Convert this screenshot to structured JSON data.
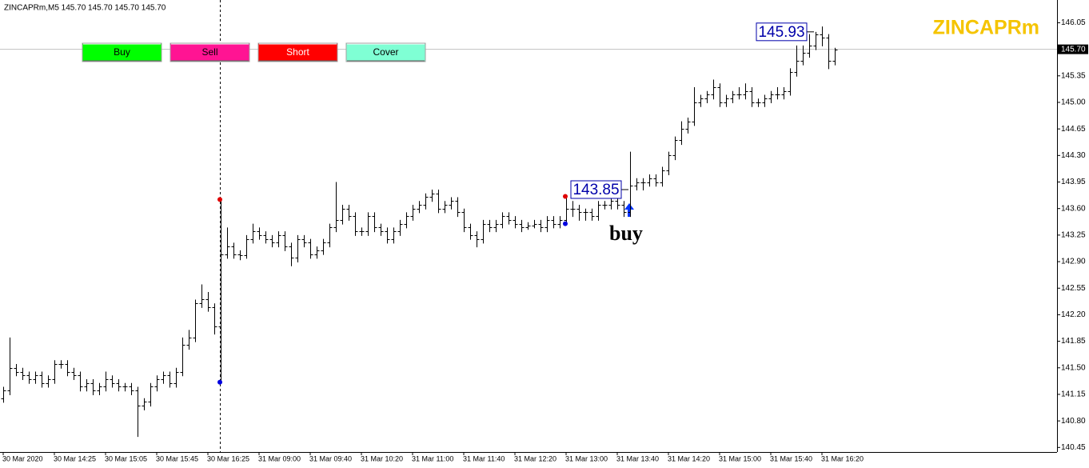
{
  "chart_data": {
    "type": "ohlc",
    "title": "ZINCAPRm,M5  145.70 145.70 145.70 145.70",
    "symbol": "ZINCAPRm",
    "annotation": "buy",
    "color": "#000000",
    "ylim": [
      140.39,
      146.35
    ],
    "yticks": [
      140.45,
      {
        "value": 140.8,
        "label": "140.80"
      },
      141.15,
      {
        "value": 141.5,
        "label": "141.50"
      },
      141.85,
      {
        "value": 142.2,
        "label": "142.20"
      },
      142.55,
      {
        "value": 142.9,
        "label": "142.90"
      },
      143.25,
      {
        "value": 143.6,
        "label": "143.60"
      },
      143.95,
      {
        "value": 144.3,
        "label": "144.30"
      },
      144.65,
      {
        "value": 145,
        "label": "145.00"
      },
      145.35,
      {
        "value": 145.7,
        "label": "145.70"
      },
      146.05
    ],
    "last_price": {
      "value": 145.7,
      "label": "145.70"
    },
    "trade_labels": [
      143.85,
      145.93
    ],
    "signals": [
      {
        "high": 143.72,
        "low": 141.31,
        "high_color": "#e00000",
        "low_color": "#0000e0"
      },
      {
        "high": 143.76,
        "low": 143.4,
        "high_color": "#e00000",
        "low_color": "#0000e0"
      }
    ],
    "categories": [
      "30 Mar 2020",
      null,
      null,
      null,
      null,
      null,
      null,
      null,
      "30 Mar 14:25",
      null,
      null,
      null,
      null,
      null,
      null,
      null,
      "30 Mar 15:05",
      null,
      null,
      null,
      null,
      null,
      null,
      null,
      "30 Mar 15:45",
      null,
      null,
      null,
      null,
      null,
      null,
      null,
      "30 Mar 16:25",
      null,
      null,
      null,
      null,
      null,
      null,
      null,
      "31 Mar 09:00",
      null,
      null,
      null,
      null,
      null,
      null,
      null,
      "31 Mar 09:40",
      null,
      null,
      null,
      null,
      null,
      null,
      null,
      "31 Mar 10:20",
      null,
      null,
      null,
      null,
      null,
      null,
      null,
      "31 Mar 11:00",
      null,
      null,
      null,
      null,
      null,
      null,
      null,
      "31 Mar 11:40",
      null,
      null,
      null,
      null,
      null,
      null,
      null,
      "31 Mar 12:20",
      null,
      null,
      null,
      null,
      null,
      null,
      null,
      "31 Mar 13:00",
      null,
      null,
      null,
      null,
      null,
      null,
      null,
      "31 Mar 13:40",
      null,
      null,
      null,
      null,
      null,
      null,
      null,
      "31 Mar 14:20",
      null,
      null,
      null,
      null,
      null,
      null,
      null,
      "31 Mar 15:00",
      null,
      null,
      null,
      null,
      null,
      null,
      null,
      "31 Mar 15:40",
      null,
      null,
      null,
      null,
      null,
      null,
      null,
      "31 Mar 16:20",
      null,
      null
    ],
    "ohlc": [
      [
        141.1,
        141.25,
        141.05,
        141.2
      ],
      [
        141.2,
        141.9,
        141.15,
        141.5
      ],
      [
        141.5,
        141.55,
        141.4,
        141.45
      ],
      [
        141.45,
        141.5,
        141.35,
        141.4
      ],
      [
        141.4,
        141.45,
        141.3,
        141.35
      ],
      [
        141.35,
        141.45,
        141.3,
        141.4
      ],
      [
        141.4,
        141.45,
        141.25,
        141.3
      ],
      [
        141.3,
        141.4,
        141.25,
        141.35
      ],
      [
        141.35,
        141.6,
        141.3,
        141.55
      ],
      [
        141.55,
        141.6,
        141.5,
        141.55
      ],
      [
        141.55,
        141.6,
        141.4,
        141.45
      ],
      [
        141.45,
        141.5,
        141.35,
        141.4
      ],
      [
        141.4,
        141.45,
        141.2,
        141.25
      ],
      [
        141.25,
        141.35,
        141.2,
        141.3
      ],
      [
        141.3,
        141.35,
        141.15,
        141.2
      ],
      [
        141.2,
        141.3,
        141.15,
        141.25
      ],
      [
        141.25,
        141.45,
        141.2,
        141.35
      ],
      [
        141.35,
        141.4,
        141.25,
        141.3
      ],
      [
        141.3,
        141.35,
        141.2,
        141.25
      ],
      [
        141.25,
        141.3,
        141.2,
        141.25
      ],
      [
        141.25,
        141.3,
        141.15,
        141.2
      ],
      [
        141.2,
        141.25,
        140.6,
        141.0
      ],
      [
        141.0,
        141.1,
        140.95,
        141.05
      ],
      [
        141.05,
        141.3,
        141.0,
        141.25
      ],
      [
        141.25,
        141.4,
        141.2,
        141.35
      ],
      [
        141.35,
        141.45,
        141.3,
        141.4
      ],
      [
        141.4,
        141.45,
        141.25,
        141.3
      ],
      [
        141.3,
        141.5,
        141.25,
        141.45
      ],
      [
        141.45,
        141.9,
        141.4,
        141.8
      ],
      [
        141.8,
        142.0,
        141.75,
        141.9
      ],
      [
        141.9,
        142.4,
        141.85,
        142.35
      ],
      [
        142.35,
        142.6,
        142.3,
        142.4
      ],
      [
        142.4,
        142.5,
        142.25,
        142.3
      ],
      [
        142.3,
        142.35,
        141.95,
        142.05
      ],
      [
        142.05,
        143.72,
        141.31,
        143.0
      ],
      [
        143.0,
        143.35,
        142.95,
        143.1
      ],
      [
        143.1,
        143.15,
        142.95,
        143.0
      ],
      [
        143.0,
        143.05,
        142.93,
        142.98
      ],
      [
        142.98,
        143.25,
        142.95,
        143.2
      ],
      [
        143.2,
        143.4,
        143.15,
        143.3
      ],
      [
        143.3,
        143.35,
        143.2,
        143.25
      ],
      [
        143.25,
        143.3,
        143.15,
        143.2
      ],
      [
        143.2,
        143.25,
        143.1,
        143.15
      ],
      [
        143.15,
        143.3,
        143.1,
        143.25
      ],
      [
        143.25,
        143.3,
        143.05,
        143.1
      ],
      [
        143.1,
        143.15,
        142.85,
        142.95
      ],
      [
        142.95,
        143.25,
        142.9,
        143.2
      ],
      [
        143.2,
        143.25,
        143.1,
        143.15
      ],
      [
        143.15,
        143.2,
        142.95,
        143.0
      ],
      [
        143.0,
        143.1,
        142.95,
        143.05
      ],
      [
        143.05,
        143.2,
        143.0,
        143.15
      ],
      [
        143.15,
        143.4,
        143.1,
        143.35
      ],
      [
        143.35,
        143.95,
        143.3,
        143.45
      ],
      [
        143.45,
        143.65,
        143.4,
        143.6
      ],
      [
        143.6,
        143.65,
        143.45,
        143.5
      ],
      [
        143.5,
        143.55,
        143.25,
        143.3
      ],
      [
        143.3,
        143.35,
        143.25,
        143.3
      ],
      [
        143.3,
        143.55,
        143.25,
        143.5
      ],
      [
        143.5,
        143.55,
        143.3,
        143.35
      ],
      [
        143.35,
        143.4,
        143.25,
        143.3
      ],
      [
        143.3,
        143.35,
        143.15,
        143.2
      ],
      [
        143.2,
        143.35,
        143.15,
        143.3
      ],
      [
        143.3,
        143.45,
        143.25,
        143.4
      ],
      [
        143.4,
        143.55,
        143.35,
        143.5
      ],
      [
        143.5,
        143.65,
        143.45,
        143.6
      ],
      [
        143.6,
        143.7,
        143.55,
        143.65
      ],
      [
        143.65,
        143.8,
        143.6,
        143.75
      ],
      [
        143.75,
        143.85,
        143.7,
        143.8
      ],
      [
        143.8,
        143.85,
        143.55,
        143.6
      ],
      [
        143.6,
        143.7,
        143.55,
        143.65
      ],
      [
        143.65,
        143.75,
        143.6,
        143.7
      ],
      [
        143.7,
        143.75,
        143.5,
        143.55
      ],
      [
        143.55,
        143.6,
        143.3,
        143.35
      ],
      [
        143.35,
        143.4,
        143.2,
        143.25
      ],
      [
        143.25,
        143.3,
        143.1,
        143.2
      ],
      [
        143.2,
        143.45,
        143.15,
        143.4
      ],
      [
        143.4,
        143.45,
        143.3,
        143.35
      ],
      [
        143.35,
        143.45,
        143.3,
        143.4
      ],
      [
        143.4,
        143.55,
        143.35,
        143.5
      ],
      [
        143.5,
        143.55,
        143.4,
        143.45
      ],
      [
        143.45,
        143.5,
        143.35,
        143.4
      ],
      [
        143.4,
        143.45,
        143.3,
        143.35
      ],
      [
        143.35,
        143.42,
        143.33,
        143.38
      ],
      [
        143.38,
        143.45,
        143.35,
        143.4
      ],
      [
        143.4,
        143.45,
        143.3,
        143.35
      ],
      [
        143.35,
        143.5,
        143.3,
        143.45
      ],
      [
        143.45,
        143.5,
        143.35,
        143.4
      ],
      [
        143.4,
        143.5,
        143.35,
        143.45
      ],
      [
        143.45,
        143.76,
        143.4,
        143.6
      ],
      [
        143.6,
        143.7,
        143.5,
        143.6
      ],
      [
        143.6,
        143.65,
        143.45,
        143.55
      ],
      [
        143.55,
        143.6,
        143.45,
        143.55
      ],
      [
        143.55,
        143.6,
        143.45,
        143.5
      ],
      [
        143.5,
        143.7,
        143.45,
        143.65
      ],
      [
        143.65,
        143.7,
        143.6,
        143.65
      ],
      [
        143.65,
        143.75,
        143.6,
        143.7
      ],
      [
        143.7,
        143.75,
        143.6,
        143.65
      ],
      [
        143.65,
        143.7,
        143.5,
        143.55
      ],
      [
        143.55,
        144.35,
        143.5,
        143.9
      ],
      [
        143.9,
        144.0,
        143.85,
        143.95
      ],
      [
        143.95,
        144.0,
        143.85,
        143.95
      ],
      [
        143.95,
        144.05,
        143.9,
        144.0
      ],
      [
        144.0,
        144.05,
        143.9,
        143.95
      ],
      [
        143.95,
        144.15,
        143.9,
        144.1
      ],
      [
        144.1,
        144.35,
        144.05,
        144.3
      ],
      [
        144.3,
        144.55,
        144.25,
        144.5
      ],
      [
        144.5,
        144.75,
        144.45,
        144.65
      ],
      [
        144.65,
        144.8,
        144.6,
        144.75
      ],
      [
        144.75,
        145.2,
        144.7,
        145.0
      ],
      [
        145.0,
        145.1,
        144.95,
        145.05
      ],
      [
        145.05,
        145.15,
        145.0,
        145.1
      ],
      [
        145.1,
        145.3,
        145.05,
        145.2
      ],
      [
        145.2,
        145.25,
        144.95,
        145.0
      ],
      [
        145.0,
        145.1,
        144.95,
        145.05
      ],
      [
        145.05,
        145.15,
        145.0,
        145.1
      ],
      [
        145.1,
        145.2,
        145.05,
        145.1
      ],
      [
        145.1,
        145.25,
        145.05,
        145.15
      ],
      [
        145.15,
        145.2,
        144.95,
        145.0
      ],
      [
        145.0,
        145.05,
        144.95,
        145.0
      ],
      [
        145.0,
        145.1,
        144.95,
        145.05
      ],
      [
        145.05,
        145.15,
        145.0,
        145.1
      ],
      [
        145.1,
        145.2,
        145.05,
        145.1
      ],
      [
        145.1,
        145.2,
        145.05,
        145.15
      ],
      [
        145.15,
        145.45,
        145.1,
        145.4
      ],
      [
        145.4,
        145.75,
        145.35,
        145.55
      ],
      [
        145.55,
        145.75,
        145.5,
        145.65
      ],
      [
        145.65,
        145.9,
        145.6,
        145.75
      ],
      [
        145.75,
        145.93,
        145.7,
        145.9
      ],
      [
        145.9,
        146.0,
        145.75,
        145.85
      ],
      [
        145.85,
        145.9,
        145.45,
        145.55
      ],
      [
        145.55,
        145.72,
        145.5,
        145.7
      ]
    ]
  },
  "buttons": [
    {
      "label": "Buy",
      "color": "#00ff00",
      "text_color": "#000000"
    },
    {
      "label": "Sell",
      "color": "#ff1493",
      "text_color": "#000000"
    },
    {
      "label": "Short",
      "color": "#ff0000",
      "text_color": "#ffffff"
    },
    {
      "label": "Cover",
      "color": "#7fffd4",
      "text_color": "#000000"
    }
  ]
}
